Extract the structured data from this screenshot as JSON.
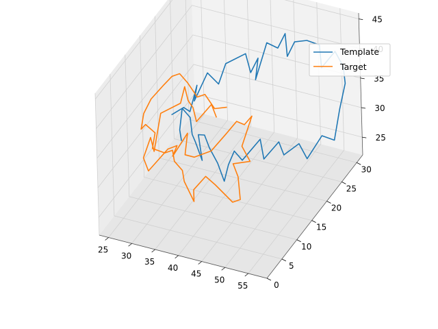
{
  "chart_data": {
    "type": "line3d",
    "title": "",
    "xlabel": "",
    "ylabel": "",
    "zlabel": "",
    "xlim": [
      23,
      59
    ],
    "ylim": [
      0,
      32
    ],
    "zlim": [
      22,
      46
    ],
    "xticks": [
      25,
      30,
      35,
      40,
      45,
      50,
      55
    ],
    "yticks": [
      0,
      5,
      10,
      15,
      20,
      25,
      30
    ],
    "zticks": [
      25,
      30,
      35,
      40,
      45
    ],
    "grid": true,
    "legend_position": "top-right",
    "series": [
      {
        "name": "Template",
        "color": "#1f77b4",
        "points": [
          [
            32,
            11,
            37
          ],
          [
            34,
            12,
            38
          ],
          [
            34,
            14,
            36
          ],
          [
            35,
            15,
            40
          ],
          [
            35,
            14,
            38
          ],
          [
            36,
            17,
            41
          ],
          [
            37,
            19,
            38
          ],
          [
            38,
            20,
            41
          ],
          [
            41,
            22,
            42
          ],
          [
            42,
            22,
            39
          ],
          [
            43,
            23,
            41
          ],
          [
            43,
            22,
            38
          ],
          [
            45,
            23,
            44
          ],
          [
            46,
            25,
            42
          ],
          [
            47,
            26,
            44
          ],
          [
            48,
            25,
            41
          ],
          [
            49,
            26,
            43
          ],
          [
            51,
            27,
            43
          ],
          [
            53,
            28,
            42
          ],
          [
            54,
            27,
            39
          ],
          [
            55,
            30,
            40
          ],
          [
            56,
            31,
            37
          ],
          [
            57,
            30,
            35
          ],
          [
            57,
            28,
            32
          ],
          [
            57,
            26,
            28
          ],
          [
            55,
            25,
            29
          ],
          [
            53,
            23,
            26
          ],
          [
            52,
            22,
            29
          ],
          [
            50,
            20,
            28
          ],
          [
            49,
            20,
            30
          ],
          [
            47,
            18,
            28
          ],
          [
            47,
            17,
            32
          ],
          [
            45,
            14,
            30
          ],
          [
            44,
            13,
            32
          ],
          [
            44,
            11,
            31
          ],
          [
            43,
            11,
            28
          ],
          [
            41,
            12,
            30
          ],
          [
            40,
            11,
            33
          ],
          [
            39,
            11,
            35
          ],
          [
            37,
            12,
            34
          ],
          [
            37,
            13,
            29
          ],
          [
            35,
            14,
            31
          ],
          [
            35,
            13,
            33
          ],
          [
            34,
            14,
            35
          ],
          [
            33,
            13,
            37
          ],
          [
            33,
            12,
            34
          ],
          [
            34,
            11,
            33
          ]
        ]
      },
      {
        "name": "Target",
        "color": "#ff7f0e",
        "points": [
          [
            37,
            18,
            33
          ],
          [
            36,
            18,
            35
          ],
          [
            34,
            16,
            33
          ],
          [
            34,
            15,
            36
          ],
          [
            33,
            15,
            37
          ],
          [
            33,
            14,
            40
          ],
          [
            32,
            14,
            37
          ],
          [
            29,
            12,
            36
          ],
          [
            28,
            11,
            30
          ],
          [
            28,
            10,
            33
          ],
          [
            27,
            9,
            30
          ],
          [
            28,
            9,
            28
          ],
          [
            31,
            11,
            31
          ],
          [
            33,
            11,
            32
          ],
          [
            32,
            11,
            30
          ],
          [
            34,
            13,
            33
          ],
          [
            34,
            12,
            30
          ],
          [
            36,
            12,
            30
          ],
          [
            39,
            13,
            31
          ],
          [
            41,
            15,
            33
          ],
          [
            42,
            17,
            34
          ],
          [
            43,
            18,
            33
          ],
          [
            44,
            19,
            34
          ],
          [
            43,
            17,
            30
          ],
          [
            44,
            18,
            27
          ],
          [
            43,
            14,
            29
          ],
          [
            43,
            14,
            29
          ],
          [
            44,
            14,
            27
          ],
          [
            45,
            13,
            24
          ],
          [
            44,
            12,
            24
          ],
          [
            41,
            11,
            27
          ],
          [
            39,
            11,
            28
          ],
          [
            37,
            10,
            26
          ],
          [
            37,
            10,
            24
          ],
          [
            35,
            10,
            27
          ],
          [
            34,
            11,
            28
          ],
          [
            33,
            10,
            30
          ],
          [
            32,
            11,
            31
          ],
          [
            31,
            10,
            31
          ],
          [
            29,
            9,
            32
          ],
          [
            29,
            10,
            34
          ],
          [
            27,
            10,
            35
          ],
          [
            26,
            10,
            34
          ],
          [
            26,
            11,
            36
          ],
          [
            27,
            12,
            38
          ],
          [
            29,
            13,
            40
          ],
          [
            31,
            13,
            42
          ],
          [
            32,
            14,
            42
          ],
          [
            33,
            15,
            40
          ],
          [
            35,
            15,
            38
          ],
          [
            36,
            16,
            38
          ],
          [
            38,
            16,
            36
          ],
          [
            40,
            17,
            36
          ]
        ]
      }
    ]
  }
}
